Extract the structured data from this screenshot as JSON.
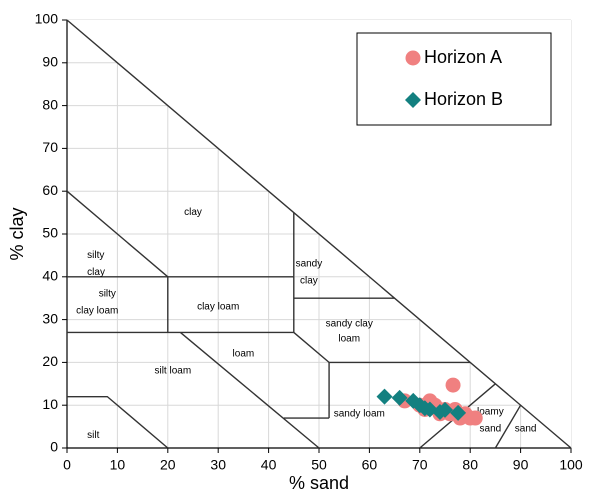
{
  "chart_data": {
    "type": "scatter",
    "xlabel": "% sand",
    "ylabel": "% clay",
    "xlim": [
      0,
      100
    ],
    "ylim": [
      0,
      100
    ],
    "xticks": [
      0,
      10,
      20,
      30,
      40,
      50,
      60,
      70,
      80,
      90,
      100
    ],
    "yticks": [
      0,
      10,
      20,
      30,
      40,
      50,
      60,
      70,
      80,
      90,
      100
    ],
    "grid": true,
    "legend": "upper right",
    "annotations": [
      "clay",
      "silty",
      "clay",
      "silty",
      "clay loam",
      "clay loam",
      "sandy",
      "clay",
      "sandy clay",
      "loam",
      "loam",
      "silt loam",
      "sandy loam",
      "loamy",
      "sand",
      "sand",
      "silt"
    ],
    "series": [
      {
        "name": "Horizon A",
        "color": "#f08080",
        "marker": "circle",
        "x": [
          76.6,
          67,
          70,
          72,
          73,
          74,
          75,
          71,
          76,
          77,
          78,
          79,
          80,
          81
        ],
        "y": [
          14.7,
          11,
          10,
          11,
          10,
          8,
          9,
          9,
          8,
          9,
          7,
          8,
          7,
          7
        ]
      },
      {
        "name": "Horizon B",
        "color": "#138080",
        "marker": "diamond",
        "x": [
          63,
          66,
          68.7,
          70,
          71,
          72,
          74,
          75,
          77.6
        ],
        "y": [
          12,
          11.7,
          11,
          10,
          9.3,
          9,
          8.4,
          8.9,
          8.2
        ]
      }
    ]
  }
}
